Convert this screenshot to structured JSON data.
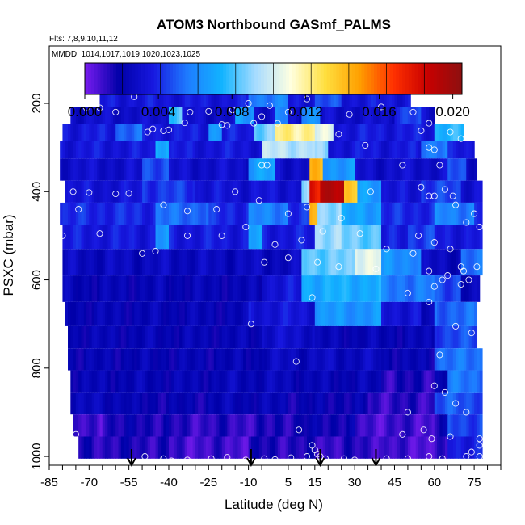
{
  "chart_data": {
    "type": "heatmap",
    "title": "ATOM3 Northbound GASmf_PALMS",
    "flights_note": "Flts: 7,8,9,10,11,12",
    "mmdd_note": "MMDD: 1014,1017,1019,1020,1023,1025",
    "xlabel": "Latitude (deg N)",
    "ylabel": "PSXC (mbar)",
    "xlim": [
      -85,
      85
    ],
    "ylim": [
      1020,
      70
    ],
    "y_reversed": true,
    "x_ticks": [
      -85,
      -70,
      -55,
      -40,
      -25,
      -10,
      5,
      15,
      30,
      45,
      60,
      75
    ],
    "y_ticks": [
      200,
      400,
      600,
      800,
      1000
    ],
    "colorbar": {
      "min": 0.0,
      "max": 0.0205,
      "ticks": [
        0.0,
        0.004,
        0.008,
        0.012,
        0.016,
        0.02
      ],
      "tick_labels": [
        "0.000",
        "0.004",
        "0.008",
        "0.012",
        "0.016",
        "0.020"
      ],
      "colors": [
        "#7a1cf0",
        "#0000a8",
        "#1818e0",
        "#1e7cff",
        "#12b4ff",
        "#a8dcff",
        "#ffffe0",
        "#ffe040",
        "#ffa000",
        "#ff3000",
        "#c80000",
        "#8c1010"
      ]
    },
    "arrows_latitude": [
      -54,
      -9,
      17,
      38
    ],
    "pressure_levels": [
      190,
      225,
      270,
      300,
      350,
      400,
      450,
      500,
      560,
      620,
      680,
      730,
      780,
      830,
      880,
      930,
      980
    ],
    "layers": [
      {
        "p": 190,
        "x0": -66,
        "x1": 51,
        "base": 0.0035,
        "feat": [
          [
            -10,
            5,
            0.0058
          ],
          [
            15,
            25,
            0.0046
          ]
        ]
      },
      {
        "p": 225,
        "x0": -77,
        "x1": 60,
        "base": 0.003,
        "feat": [
          [
            -40,
            -35,
            0.0082
          ],
          [
            -15,
            -8,
            0.0065
          ],
          [
            0,
            5,
            0.0058
          ],
          [
            10,
            17,
            0.0064
          ],
          [
            45,
            55,
            0.0044
          ]
        ]
      },
      {
        "p": 270,
        "x0": -80,
        "x1": 71,
        "base": 0.0036,
        "feat": [
          [
            -60,
            -50,
            0.0052
          ],
          [
            -25,
            -20,
            0.0066
          ],
          [
            -8,
            0,
            0.0087
          ],
          [
            0,
            15,
            0.0122
          ],
          [
            15,
            22,
            0.0104
          ],
          [
            60,
            71,
            0.0075
          ]
        ]
      },
      {
        "p": 300,
        "x0": -81,
        "x1": 75,
        "base": 0.0035,
        "feat": [
          [
            -45,
            -40,
            0.0075
          ],
          [
            -5,
            15,
            0.0097
          ],
          [
            15,
            20,
            0.0088
          ],
          [
            55,
            65,
            0.0058
          ]
        ]
      },
      {
        "p": 350,
        "x0": -81,
        "x1": 76,
        "base": 0.003,
        "feat": [
          [
            -50,
            -40,
            0.0048
          ],
          [
            -10,
            0,
            0.0068
          ],
          [
            13,
            18,
            0.014
          ],
          [
            18,
            30,
            0.0066
          ],
          [
            65,
            72,
            0.0047
          ]
        ]
      },
      {
        "p": 400,
        "x0": -79,
        "x1": 78,
        "base": 0.0033,
        "feat": [
          [
            -50,
            -30,
            0.0043
          ],
          [
            10,
            13,
            0.0088
          ],
          [
            13,
            17,
            0.0175
          ],
          [
            17,
            26,
            0.0195
          ],
          [
            26,
            31,
            0.0135
          ],
          [
            31,
            40,
            0.0068
          ],
          [
            55,
            70,
            0.0044
          ]
        ]
      },
      {
        "p": 450,
        "x0": -81,
        "x1": 78,
        "base": 0.004,
        "feat": [
          [
            -45,
            -25,
            0.0053
          ],
          [
            -10,
            5,
            0.0058
          ],
          [
            13,
            16,
            0.0145
          ],
          [
            16,
            25,
            0.0092
          ],
          [
            25,
            40,
            0.0068
          ],
          [
            60,
            75,
            0.0058
          ]
        ]
      },
      {
        "p": 500,
        "x0": -80,
        "x1": 78,
        "base": 0.0036,
        "feat": [
          [
            -45,
            -40,
            0.0064
          ],
          [
            -10,
            -5,
            0.0068
          ],
          [
            15,
            25,
            0.0093
          ],
          [
            25,
            40,
            0.0085
          ],
          [
            50,
            60,
            0.0045
          ]
        ]
      },
      {
        "p": 560,
        "x0": -80,
        "x1": 78,
        "base": 0.0026,
        "feat": [
          [
            10,
            30,
            0.0085
          ],
          [
            30,
            40,
            0.0108
          ],
          [
            40,
            55,
            0.0062
          ],
          [
            70,
            78,
            0.0052
          ]
        ]
      },
      {
        "p": 620,
        "x0": -80,
        "x1": 77,
        "base": 0.0022,
        "feat": [
          [
            -5,
            10,
            0.0034
          ],
          [
            10,
            40,
            0.0072
          ],
          [
            40,
            60,
            0.0056
          ],
          [
            60,
            70,
            0.0047
          ]
        ]
      },
      {
        "p": 680,
        "x0": -79,
        "x1": 76,
        "base": 0.0022,
        "feat": [
          [
            -10,
            15,
            0.0034
          ],
          [
            15,
            40,
            0.0064
          ],
          [
            40,
            55,
            0.0034
          ],
          [
            60,
            76,
            0.0052
          ]
        ]
      },
      {
        "p": 730,
        "x0": -78,
        "x1": 76,
        "base": 0.0022,
        "feat": [
          [
            -5,
            15,
            0.003
          ],
          [
            60,
            76,
            0.0046
          ]
        ]
      },
      {
        "p": 780,
        "x0": -78,
        "x1": 78,
        "base": 0.0021,
        "feat": [
          [
            -5,
            15,
            0.0026
          ],
          [
            15,
            40,
            0.0026
          ],
          [
            60,
            78,
            0.0054
          ]
        ]
      },
      {
        "p": 830,
        "x0": -77,
        "x1": 78,
        "base": 0.0022,
        "feat": [
          [
            -20,
            10,
            0.0024
          ],
          [
            40,
            60,
            0.0014
          ],
          [
            65,
            78,
            0.0055
          ]
        ]
      },
      {
        "p": 880,
        "x0": -77,
        "x1": 78,
        "base": 0.0019,
        "feat": [
          [
            -78,
            -55,
            0.0024
          ],
          [
            -25,
            5,
            0.0022
          ],
          [
            35,
            60,
            0.0012
          ],
          [
            60,
            78,
            0.0048
          ]
        ]
      },
      {
        "p": 930,
        "x0": -76,
        "x1": 78,
        "base": 0.0016,
        "feat": [
          [
            -76,
            -65,
            0.0008
          ],
          [
            -40,
            0,
            0.0012
          ],
          [
            10,
            30,
            0.0018
          ],
          [
            30,
            60,
            0.0009
          ],
          [
            65,
            78,
            0.0046
          ]
        ]
      },
      {
        "p": 980,
        "x0": -74,
        "x1": 78,
        "base": 0.0014,
        "feat": [
          [
            -40,
            -10,
            0.0009
          ],
          [
            10,
            40,
            0.0012
          ],
          [
            40,
            65,
            0.0008
          ],
          [
            65,
            78,
            0.0038
          ]
        ]
      }
    ],
    "points": [
      [
        -71,
        210
      ],
      [
        -66,
        210
      ],
      [
        -60,
        220
      ],
      [
        -53,
        185
      ],
      [
        -32,
        220
      ],
      [
        -25,
        218
      ],
      [
        -16,
        215
      ],
      [
        -10,
        200
      ],
      [
        -5,
        230
      ],
      [
        -2,
        205
      ],
      [
        5,
        220
      ],
      [
        12,
        190
      ],
      [
        28,
        225
      ],
      [
        40,
        208
      ],
      [
        52,
        220
      ],
      [
        58,
        245
      ],
      [
        -48,
        265
      ],
      [
        -46,
        258
      ],
      [
        -40,
        260
      ],
      [
        -42,
        262
      ],
      [
        -34,
        244
      ],
      [
        -20,
        248
      ],
      [
        -18,
        250
      ],
      [
        -8,
        245
      ],
      [
        1,
        245
      ],
      [
        55,
        262
      ],
      [
        66,
        265
      ],
      [
        70,
        280
      ],
      [
        58,
        300
      ],
      [
        34,
        295
      ],
      [
        24,
        270
      ],
      [
        -84,
        330
      ],
      [
        -5,
        340
      ],
      [
        -3,
        340
      ],
      [
        48,
        340
      ],
      [
        62,
        340
      ],
      [
        55,
        390
      ],
      [
        58,
        410
      ],
      [
        64,
        395
      ],
      [
        67,
        410
      ],
      [
        60,
        305
      ],
      [
        -76,
        400
      ],
      [
        -70,
        402
      ],
      [
        -60,
        405
      ],
      [
        -55,
        404
      ],
      [
        -42,
        430
      ],
      [
        -33,
        444
      ],
      [
        -22,
        440
      ],
      [
        -15,
        400
      ],
      [
        -6,
        420
      ],
      [
        5,
        450
      ],
      [
        12,
        435
      ],
      [
        36,
        400
      ],
      [
        60,
        410
      ],
      [
        68,
        430
      ],
      [
        72,
        470
      ],
      [
        75,
        450
      ],
      [
        77,
        480
      ],
      [
        -80,
        500
      ],
      [
        -74,
        440
      ],
      [
        -66,
        495
      ],
      [
        -50,
        540
      ],
      [
        -45,
        535
      ],
      [
        -33,
        500
      ],
      [
        -20,
        500
      ],
      [
        -11,
        480
      ],
      [
        0,
        520
      ],
      [
        10,
        510
      ],
      [
        18,
        490
      ],
      [
        25,
        460
      ],
      [
        32,
        495
      ],
      [
        42,
        530
      ],
      [
        52,
        540
      ],
      [
        54,
        500
      ],
      [
        60,
        515
      ],
      [
        66,
        530
      ],
      [
        70,
        570
      ],
      [
        71,
        580
      ],
      [
        76,
        570
      ],
      [
        -4,
        560
      ],
      [
        5,
        550
      ],
      [
        16,
        560
      ],
      [
        24,
        570
      ],
      [
        38,
        575
      ],
      [
        58,
        580
      ],
      [
        63,
        600
      ],
      [
        65,
        590
      ],
      [
        70,
        610
      ],
      [
        60,
        615
      ],
      [
        73,
        600
      ],
      [
        14,
        640
      ],
      [
        -9,
        700
      ],
      [
        8,
        785
      ],
      [
        50,
        630
      ],
      [
        58,
        650
      ],
      [
        68,
        705
      ],
      [
        74,
        720
      ],
      [
        62,
        770
      ],
      [
        60,
        840
      ],
      [
        64,
        855
      ],
      [
        68,
        880
      ],
      [
        72,
        900
      ],
      [
        50,
        900
      ],
      [
        56,
        940
      ],
      [
        48,
        950
      ],
      [
        59,
        960
      ],
      [
        66,
        955
      ],
      [
        77,
        960
      ],
      [
        -75,
        950
      ],
      [
        9,
        940
      ],
      [
        14,
        975
      ],
      [
        15,
        985
      ],
      [
        16,
        995
      ],
      [
        17,
        1000
      ],
      [
        19,
        1005
      ],
      [
        -49,
        1000
      ],
      [
        -42,
        1005
      ],
      [
        -39,
        1010
      ],
      [
        -33,
        1008
      ],
      [
        -24,
        1005
      ],
      [
        -18,
        1002
      ],
      [
        -11,
        1008
      ],
      [
        -4,
        1005
      ],
      [
        0,
        1007
      ],
      [
        6,
        1003
      ],
      [
        12,
        1000
      ],
      [
        26,
        1005
      ],
      [
        30,
        1008
      ],
      [
        42,
        1005
      ],
      [
        50,
        1005
      ],
      [
        58,
        1000
      ],
      [
        63,
        1005
      ],
      [
        72,
        1000
      ],
      [
        74,
        990
      ],
      [
        77,
        975
      ],
      [
        77,
        1000
      ]
    ]
  }
}
